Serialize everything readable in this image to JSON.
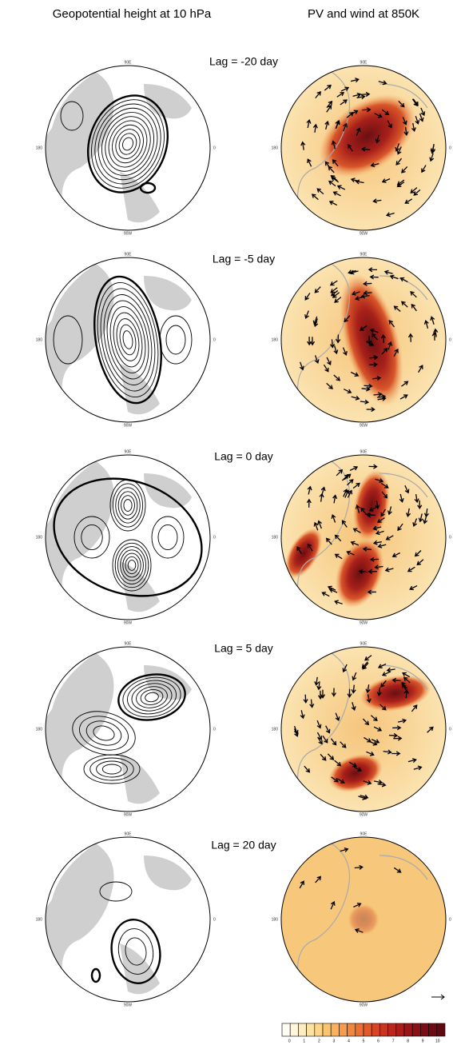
{
  "header": {
    "left_title": "Geopotential height at 10 hPa",
    "right_title": "PV and wind at 850K"
  },
  "panels": [
    {
      "lag": "Lag = -20 day"
    },
    {
      "lag": "Lag = -5 day"
    },
    {
      "lag": "Lag = 0 day"
    },
    {
      "lag": "Lag = 5 day"
    },
    {
      "lag": "Lag = 20 day"
    }
  ],
  "map_labels": {
    "top": "90E",
    "left": "180",
    "right": "0",
    "bottom": "90W"
  },
  "colorbar": {
    "ticks": [
      "0",
      "1",
      "2",
      "3",
      "4",
      "5",
      "6",
      "7",
      "8",
      "9",
      "10"
    ]
  }
}
